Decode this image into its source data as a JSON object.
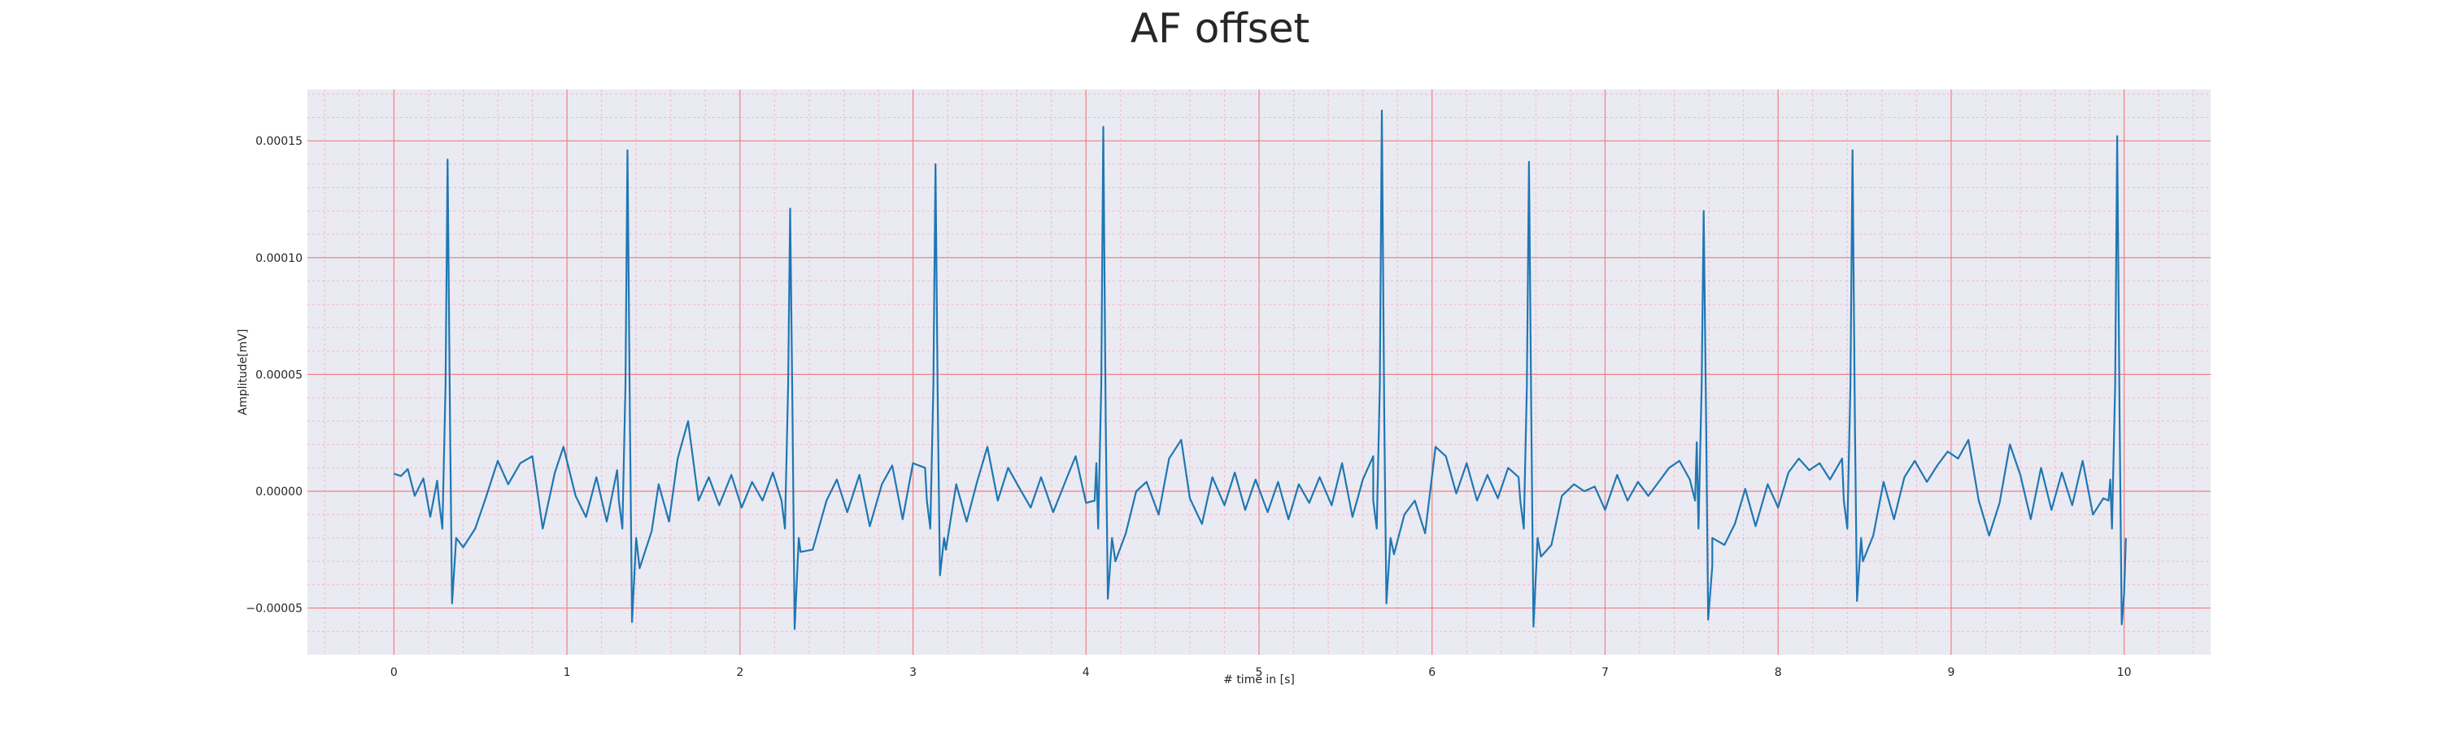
{
  "chart_data": {
    "type": "line",
    "title": "AF offset",
    "xlabel": "# time in [s]",
    "ylabel": "Amplitude[mV]",
    "xlim": [
      -0.5,
      10.5
    ],
    "ylim": [
      -7e-05,
      0.000172
    ],
    "x_ticks": [
      0,
      1,
      2,
      3,
      4,
      5,
      6,
      7,
      8,
      9,
      10
    ],
    "x_tick_labels": [
      "0",
      "1",
      "2",
      "3",
      "4",
      "5",
      "6",
      "7",
      "8",
      "9",
      "10"
    ],
    "y_ticks": [
      -5e-05,
      0,
      5e-05,
      0.0001,
      0.00015
    ],
    "y_tick_labels": [
      "−0.00005",
      "0.00000",
      "0.00005",
      "0.00010",
      "0.00015"
    ],
    "grid": {
      "major": true,
      "minor": true,
      "major_color": "#f08080",
      "minor_color": "#f5b8c8"
    },
    "colors": {
      "line": "#1f77b4",
      "plot_bg": "#eaeaf2"
    },
    "series": [
      {
        "r_peaks": [
          {
            "t": 0.31,
            "peak": 0.000142,
            "trough": -4.8e-05
          },
          {
            "t": 1.35,
            "peak": 0.000146,
            "trough": -5.6e-05
          },
          {
            "t": 2.29,
            "peak": 0.000121,
            "trough": -5.9e-05
          },
          {
            "t": 3.13,
            "peak": 0.00014,
            "trough": -3.6e-05
          },
          {
            "t": 4.1,
            "peak": 0.000156,
            "trough": -4.6e-05
          },
          {
            "t": 5.71,
            "peak": 0.000163,
            "trough": -4.8e-05
          },
          {
            "t": 6.56,
            "peak": 0.000141,
            "trough": -5.8e-05
          },
          {
            "t": 7.57,
            "peak": 0.00012,
            "trough": -5.5e-05
          },
          {
            "t": 8.43,
            "peak": 0.000146,
            "trough": -4.7e-05
          },
          {
            "t": 9.96,
            "peak": 0.000152,
            "trough": -5.7e-05
          }
        ],
        "baseline": [
          [
            0.0,
            7.5e-06
          ],
          [
            0.04,
            6.5e-06
          ],
          [
            0.08,
            9.5e-06
          ],
          [
            0.12,
            -2e-06
          ],
          [
            0.17,
            5.5e-06
          ],
          [
            0.21,
            -1.1e-05
          ],
          [
            0.25,
            4.5e-06
          ],
          [
            0.4,
            -2.4e-05
          ],
          [
            0.47,
            -1.6e-05
          ],
          [
            0.53,
            -3e-06
          ],
          [
            0.6,
            1.3e-05
          ],
          [
            0.66,
            3e-06
          ],
          [
            0.73,
            1.2e-05
          ],
          [
            0.8,
            1.5e-05
          ],
          [
            0.86,
            -1.6e-05
          ],
          [
            0.93,
            8e-06
          ],
          [
            0.98,
            1.9e-05
          ],
          [
            1.05,
            -2e-06
          ],
          [
            1.11,
            -1.1e-05
          ],
          [
            1.17,
            6e-06
          ],
          [
            1.23,
            -1.3e-05
          ],
          [
            1.29,
            9e-06
          ],
          [
            1.42,
            -3.3e-05
          ],
          [
            1.49,
            -1.7e-05
          ],
          [
            1.53,
            3e-06
          ],
          [
            1.59,
            -1.3e-05
          ],
          [
            1.64,
            1.4e-05
          ],
          [
            1.7,
            3e-05
          ],
          [
            1.76,
            -4e-06
          ],
          [
            1.82,
            6e-06
          ],
          [
            1.88,
            -6e-06
          ],
          [
            1.95,
            7e-06
          ],
          [
            2.01,
            -7e-06
          ],
          [
            2.07,
            4e-06
          ],
          [
            2.13,
            -4e-06
          ],
          [
            2.19,
            8e-06
          ],
          [
            2.35,
            -2.6e-05
          ],
          [
            2.42,
            -2.5e-05
          ],
          [
            2.5,
            -4e-06
          ],
          [
            2.56,
            5e-06
          ],
          [
            2.62,
            -9e-06
          ],
          [
            2.69,
            7e-06
          ],
          [
            2.75,
            -1.5e-05
          ],
          [
            2.82,
            3e-06
          ],
          [
            2.88,
            1.1e-05
          ],
          [
            2.94,
            -1.2e-05
          ],
          [
            3.0,
            1.2e-05
          ],
          [
            3.07,
            1e-05
          ],
          [
            3.19,
            -2.5e-05
          ],
          [
            3.25,
            3e-06
          ],
          [
            3.31,
            -1.3e-05
          ],
          [
            3.37,
            4e-06
          ],
          [
            3.43,
            1.9e-05
          ],
          [
            3.49,
            -4e-06
          ],
          [
            3.55,
            1e-05
          ],
          [
            3.61,
            2e-06
          ],
          [
            3.68,
            -7e-06
          ],
          [
            3.74,
            6e-06
          ],
          [
            3.81,
            -9e-06
          ],
          [
            3.88,
            4e-06
          ],
          [
            3.94,
            1.5e-05
          ],
          [
            4.0,
            -5e-06
          ],
          [
            4.06,
            1.2e-05
          ],
          [
            4.17,
            -3e-05
          ],
          [
            4.23,
            -1.8e-05
          ],
          [
            4.29,
            0.0
          ],
          [
            4.35,
            4e-06
          ],
          [
            4.42,
            -1e-05
          ],
          [
            4.48,
            1.4e-05
          ],
          [
            4.55,
            2.2e-05
          ],
          [
            4.6,
            -3e-06
          ],
          [
            4.67,
            -1.4e-05
          ],
          [
            4.73,
            6e-06
          ],
          [
            4.8,
            -6e-06
          ],
          [
            4.86,
            8e-06
          ],
          [
            4.92,
            -8e-06
          ],
          [
            4.98,
            5e-06
          ],
          [
            5.05,
            -9e-06
          ],
          [
            5.11,
            4e-06
          ],
          [
            5.17,
            -1.2e-05
          ],
          [
            5.23,
            3e-06
          ],
          [
            5.29,
            -5e-06
          ],
          [
            5.35,
            6e-06
          ],
          [
            5.42,
            -6e-06
          ],
          [
            5.48,
            1.2e-05
          ],
          [
            5.54,
            -1.1e-05
          ],
          [
            5.6,
            5e-06
          ],
          [
            5.66,
            1.5e-05
          ],
          [
            5.78,
            -2.7e-05
          ],
          [
            5.84,
            -1e-05
          ],
          [
            5.9,
            -4e-06
          ],
          [
            5.96,
            -1.8e-05
          ],
          [
            6.02,
            1.9e-05
          ],
          [
            6.08,
            1.5e-05
          ],
          [
            6.14,
            -1e-06
          ],
          [
            6.2,
            1.2e-05
          ],
          [
            6.26,
            -4e-06
          ],
          [
            6.32,
            7e-06
          ],
          [
            6.38,
            -3e-06
          ],
          [
            6.44,
            1e-05
          ],
          [
            6.5,
            6e-06
          ],
          [
            6.63,
            -2.8e-05
          ],
          [
            6.69,
            -2.3e-05
          ],
          [
            6.75,
            -2e-06
          ],
          [
            6.82,
            3e-06
          ],
          [
            6.88,
            0.0
          ],
          [
            6.94,
            2e-06
          ],
          [
            7.0,
            -8e-06
          ],
          [
            7.07,
            7e-06
          ],
          [
            7.13,
            -4e-06
          ],
          [
            7.19,
            4e-06
          ],
          [
            7.25,
            -2e-06
          ],
          [
            7.31,
            4e-06
          ],
          [
            7.37,
            1e-05
          ],
          [
            7.43,
            1.3e-05
          ],
          [
            7.49,
            5e-06
          ],
          [
            7.53,
            2.1e-05
          ],
          [
            7.62,
            -3.2e-05
          ],
          [
            7.69,
            -2.3e-05
          ],
          [
            7.75,
            -1.4e-05
          ],
          [
            7.81,
            1e-06
          ],
          [
            7.87,
            -1.5e-05
          ],
          [
            7.94,
            3e-06
          ],
          [
            8.0,
            -7e-06
          ],
          [
            8.06,
            8e-06
          ],
          [
            8.12,
            1.4e-05
          ],
          [
            8.18,
            9e-06
          ],
          [
            8.24,
            1.2e-05
          ],
          [
            8.3,
            5e-06
          ],
          [
            8.37,
            1.4e-05
          ],
          [
            8.49,
            -3e-05
          ],
          [
            8.55,
            -1.9e-05
          ],
          [
            8.61,
            4e-06
          ],
          [
            8.67,
            -1.2e-05
          ],
          [
            8.73,
            6e-06
          ],
          [
            8.79,
            1.3e-05
          ],
          [
            8.86,
            4e-06
          ],
          [
            8.92,
            1.1e-05
          ],
          [
            8.98,
            1.7e-05
          ],
          [
            9.04,
            1.4e-05
          ],
          [
            9.1,
            2.2e-05
          ],
          [
            9.16,
            -4e-06
          ],
          [
            9.22,
            -1.9e-05
          ],
          [
            9.28,
            -5e-06
          ],
          [
            9.34,
            2e-05
          ],
          [
            9.4,
            7e-06
          ],
          [
            9.46,
            -1.2e-05
          ],
          [
            9.52,
            1e-05
          ],
          [
            9.58,
            -8e-06
          ],
          [
            9.64,
            8e-06
          ],
          [
            9.7,
            -6e-06
          ],
          [
            9.76,
            1.3e-05
          ],
          [
            9.82,
            -1e-05
          ],
          [
            9.88,
            -3e-06
          ],
          [
            9.92,
            5e-06
          ],
          [
            10.0,
            -4.4e-05
          ]
        ]
      }
    ]
  }
}
